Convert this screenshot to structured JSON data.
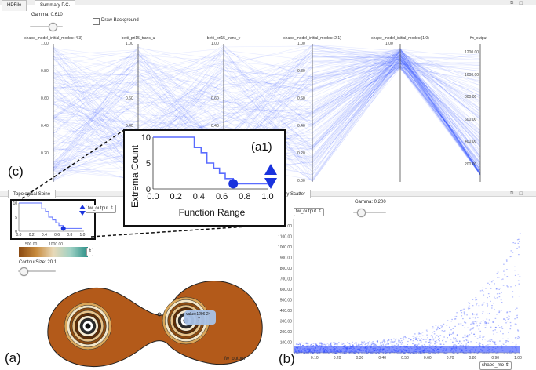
{
  "tabs": {
    "hdfile": "HDFile",
    "summary": "Summary P.C."
  },
  "pc": {
    "gamma_label": "Gamma: 0.610",
    "gamma_value": 0.61,
    "draw_background": "Draw Background",
    "axes": [
      "shape_model_initial_modes:(4,3)",
      "betti_pri15_trans_u",
      "betti_pri15_trans_v",
      "shape_model_initial_modes:(2,1)",
      "shape_model_initial_modes:(1,0)",
      "fw_output"
    ],
    "left_ticks": [
      "1.00",
      "0.80",
      "0.60",
      "0.40",
      "0.20"
    ],
    "mid_ticks": [
      "1.00",
      "0.80",
      "0.60",
      "0.40",
      "0.20",
      "0.00"
    ],
    "mid_ticks_top": [
      "1.00",
      "0.80",
      "0.60",
      "0.40"
    ],
    "right_ticks": [
      "1200.00",
      "1000.00",
      "800.00",
      "600.00",
      "400.00",
      "200.00"
    ],
    "line_color": "#1f3cff"
  },
  "spine": {
    "tab": "Topological Spine",
    "select": "fw_output",
    "colorbar_ticks": [
      "500.00",
      "1000.00"
    ],
    "contour_label": "ContourSize: 20.1",
    "contour_value": 0.2,
    "tooltip": "value:1296.24",
    "tooltip_sub": "7",
    "field_label": "fw_output",
    "colors": {
      "dark": "#b35a1a",
      "mid": "#d9a65a",
      "light": "#f3e6c8",
      "teal": "#2a8f87"
    }
  },
  "mini": {
    "yticks": [
      "10",
      "5",
      "0"
    ],
    "xticks": [
      "0.0",
      "0.2",
      "0.4",
      "0.6",
      "0.8",
      "1.0"
    ]
  },
  "callout": {
    "label": "(a1)",
    "ylabel": "Extrema Count",
    "xlabel": "Function Range",
    "yticks": [
      "10",
      "5",
      "0"
    ],
    "xticks": [
      "0.0",
      "0.2",
      "0.4",
      "0.6",
      "0.8",
      "1.0"
    ]
  },
  "scatter": {
    "tab": "Summary Scatter",
    "tab_visible": "mary Scatter",
    "y_select": "fw_output",
    "x_select": "shape_mo",
    "gamma_label": "Gamma: 0.200",
    "gamma_value": 0.2,
    "yticks": [
      "1200.00",
      "1100.00",
      "1000.00",
      "900.00",
      "800.00",
      "700.00",
      "600.00",
      "500.00",
      "400.00",
      "300.00",
      "200.00",
      "100.00"
    ],
    "xticks": [
      "0.10",
      "0.20",
      "0.30",
      "0.40",
      "0.50",
      "0.60",
      "0.70",
      "0.80",
      "0.90",
      "1.00"
    ]
  },
  "letters": {
    "a": "(a)",
    "b": "(b)",
    "c": "(c)"
  },
  "chart_data": [
    {
      "type": "line",
      "title": "",
      "xlabel": "Function Range",
      "ylabel": "Extrema Count",
      "xlim": [
        0,
        1
      ],
      "ylim": [
        0,
        10
      ],
      "x": [
        0.0,
        0.31,
        0.36,
        0.42,
        0.47,
        0.53,
        0.58,
        0.63,
        0.7,
        0.73,
        1.0
      ],
      "y": [
        10,
        10,
        8,
        7,
        5,
        4,
        3,
        2,
        1,
        1,
        1
      ],
      "marker": {
        "x": 0.7,
        "y": 1
      }
    }
  ]
}
